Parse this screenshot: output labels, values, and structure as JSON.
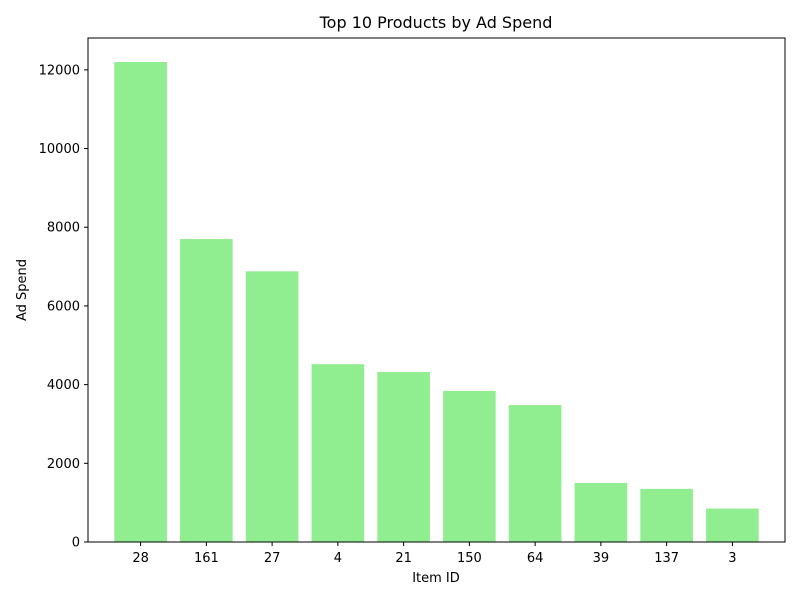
{
  "chart_data": {
    "type": "bar",
    "title": "Top 10 Products by Ad Spend",
    "xlabel": "Item ID",
    "ylabel": "Ad Spend",
    "categories": [
      "28",
      "161",
      "27",
      "4",
      "21",
      "150",
      "64",
      "39",
      "137",
      "3"
    ],
    "values": [
      12200,
      7700,
      6880,
      4520,
      4320,
      3840,
      3480,
      1500,
      1350,
      850
    ],
    "ylim": [
      0,
      12810
    ],
    "yticks": [
      0,
      2000,
      4000,
      6000,
      8000,
      10000,
      12000
    ],
    "ytick_labels": [
      "0",
      "2000",
      "4000",
      "6000",
      "8000",
      "10000",
      "12000"
    ],
    "bar_color": "#90ee90",
    "grid": false,
    "legend": "none"
  }
}
